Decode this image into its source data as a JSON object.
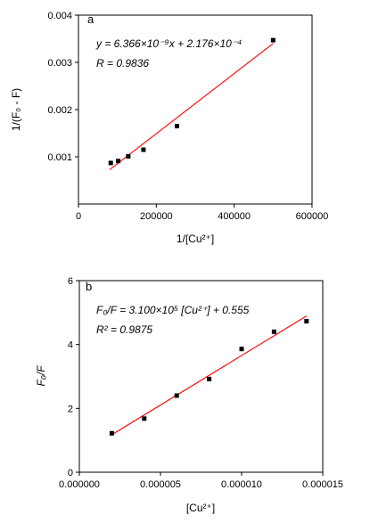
{
  "chart_data": [
    {
      "type": "scatter",
      "panel_label": "a",
      "xlabel": "1/[Cu²⁺]",
      "ylabel": "1/(F₀ - F)",
      "xlim": [
        0,
        600000
      ],
      "ylim": [
        0,
        0.004
      ],
      "x_ticks": [
        "0",
        "200000",
        "400000",
        "600000"
      ],
      "y_ticks": [
        "0.001",
        "0.002",
        "0.003",
        "0.004"
      ],
      "series": [
        {
          "x": [
            83000,
            102000,
            128000,
            167000,
            253000,
            500000
          ],
          "y": [
            0.00087,
            0.00091,
            0.00101,
            0.00115,
            0.00165,
            0.00347
          ]
        }
      ],
      "fit": {
        "slope": 6.366e-09,
        "intercept": 0.0002176,
        "x_range": [
          80000,
          500000
        ],
        "color": "#ff0000"
      },
      "annotations": [
        "y = 6.366×10⁻⁹x + 2.176×10⁻⁴",
        "R = 0.9836"
      ],
      "marker_color": "#000000"
    },
    {
      "type": "scatter",
      "panel_label": "b",
      "xlabel": "[Cu²⁺]",
      "ylabel": "F₀/F",
      "xlim": [
        0,
        1.5e-05
      ],
      "ylim": [
        0,
        6
      ],
      "x_ticks": [
        "0.000000",
        "0.000005",
        "0.000010",
        "0.000015"
      ],
      "y_ticks": [
        "0",
        "2",
        "4",
        "6"
      ],
      "series": [
        {
          "x": [
            2e-06,
            4e-06,
            6e-06,
            8e-06,
            1e-05,
            1.2e-05,
            1.4e-05
          ],
          "y": [
            1.22,
            1.68,
            2.4,
            2.92,
            3.86,
            4.4,
            4.73
          ]
        }
      ],
      "fit": {
        "slope": 310000,
        "intercept": 0.555,
        "x_range": [
          2e-06,
          1.4e-05
        ],
        "color": "#ff0000"
      },
      "annotations": [
        "F₀/F = 3.100×10⁵ [Cu²⁺] + 0.555",
        "R² = 0.9875"
      ],
      "marker_color": "#000000"
    }
  ]
}
